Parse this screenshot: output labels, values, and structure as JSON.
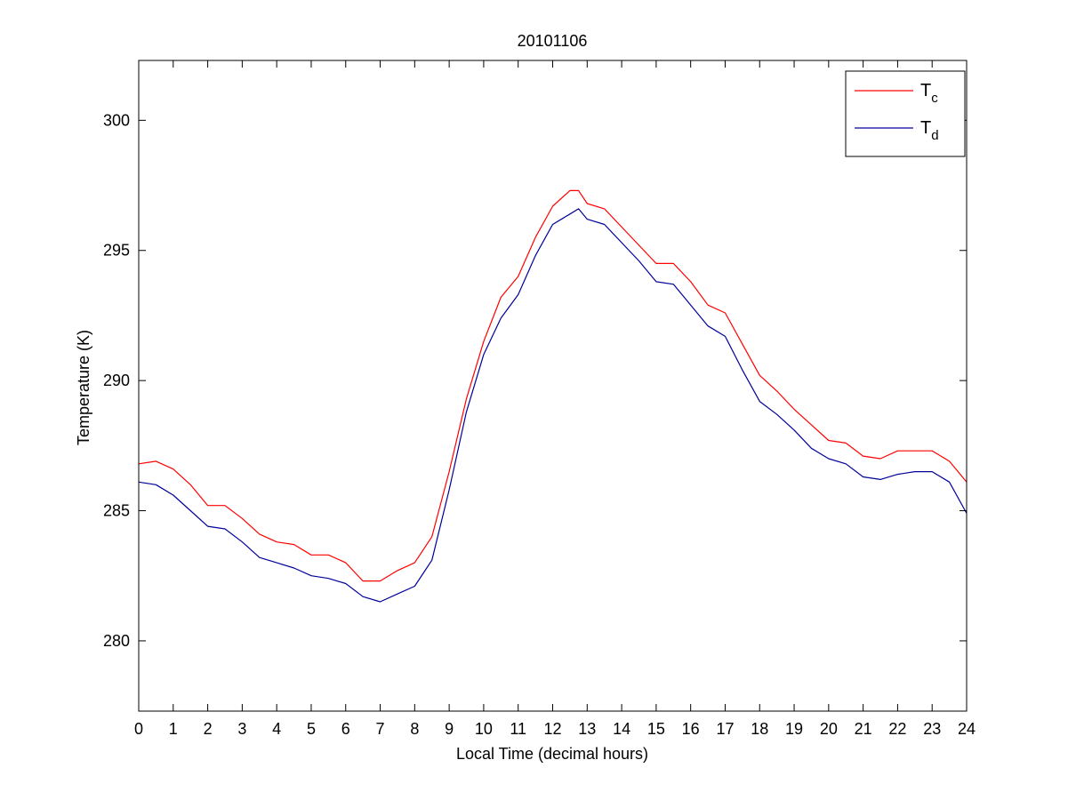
{
  "chart_data": {
    "type": "line",
    "title": "20101106",
    "xlabel": "Local Time (decimal hours)",
    "ylabel": "Temperature (K)",
    "xlim": [
      0,
      24
    ],
    "ylim": [
      277.3,
      302.3
    ],
    "xticks": [
      0,
      1,
      2,
      3,
      4,
      5,
      6,
      7,
      8,
      9,
      10,
      11,
      12,
      13,
      14,
      15,
      16,
      17,
      18,
      19,
      20,
      21,
      22,
      23,
      24
    ],
    "yticks": [
      280,
      285,
      290,
      295,
      300
    ],
    "grid": false,
    "legend_position": "top-right",
    "series": [
      {
        "name": "T_c",
        "legend_base": "T",
        "legend_sub": "c",
        "color": "#ff0000",
        "x": [
          0,
          0.5,
          1,
          1.5,
          2,
          2.5,
          3,
          3.5,
          4,
          4.5,
          5,
          5.5,
          6,
          6.5,
          7,
          7.5,
          8,
          8.5,
          9,
          9.5,
          10,
          10.5,
          11,
          11.5,
          12,
          12.5,
          12.75,
          13,
          13.5,
          14,
          14.5,
          15,
          15.5,
          16,
          16.5,
          17,
          17.5,
          18,
          18.5,
          19,
          19.5,
          20,
          20.5,
          21,
          21.5,
          22,
          22.5,
          23,
          23.5,
          24
        ],
        "values": [
          286.8,
          286.9,
          286.6,
          286.0,
          285.2,
          285.2,
          284.7,
          284.1,
          283.8,
          283.7,
          283.3,
          283.3,
          283.0,
          282.3,
          282.3,
          282.7,
          283.0,
          284.0,
          286.5,
          289.3,
          291.5,
          293.2,
          294.0,
          295.5,
          296.7,
          297.3,
          297.3,
          296.8,
          296.6,
          295.9,
          295.2,
          294.5,
          294.5,
          293.8,
          292.9,
          292.6,
          291.4,
          290.2,
          289.6,
          288.9,
          288.3,
          287.7,
          287.6,
          287.1,
          287.0,
          287.3,
          287.3,
          287.3,
          286.9,
          286.1
        ]
      },
      {
        "name": "T_d",
        "legend_base": "T",
        "legend_sub": "d",
        "color": "#000099",
        "x": [
          0,
          0.5,
          1,
          1.5,
          2,
          2.5,
          3,
          3.5,
          4,
          4.5,
          5,
          5.5,
          6,
          6.5,
          7,
          7.5,
          8,
          8.5,
          9,
          9.5,
          10,
          10.5,
          11,
          11.5,
          12,
          12.5,
          12.75,
          13,
          13.5,
          14,
          14.5,
          15,
          15.5,
          16,
          16.5,
          17,
          17.5,
          18,
          18.5,
          19,
          19.5,
          20,
          20.5,
          21,
          21.5,
          22,
          22.5,
          23,
          23.5,
          24
        ],
        "values": [
          286.1,
          286.0,
          285.6,
          285.0,
          284.4,
          284.3,
          283.8,
          283.2,
          283.0,
          282.8,
          282.5,
          282.4,
          282.2,
          281.7,
          281.5,
          281.8,
          282.1,
          283.1,
          285.8,
          288.8,
          291.0,
          292.4,
          293.3,
          294.8,
          296.0,
          296.4,
          296.6,
          296.2,
          296.0,
          295.3,
          294.6,
          293.8,
          293.7,
          292.9,
          292.1,
          291.7,
          290.4,
          289.2,
          288.7,
          288.1,
          287.4,
          287.0,
          286.8,
          286.3,
          286.2,
          286.4,
          286.5,
          286.5,
          286.1,
          284.9
        ]
      }
    ]
  }
}
